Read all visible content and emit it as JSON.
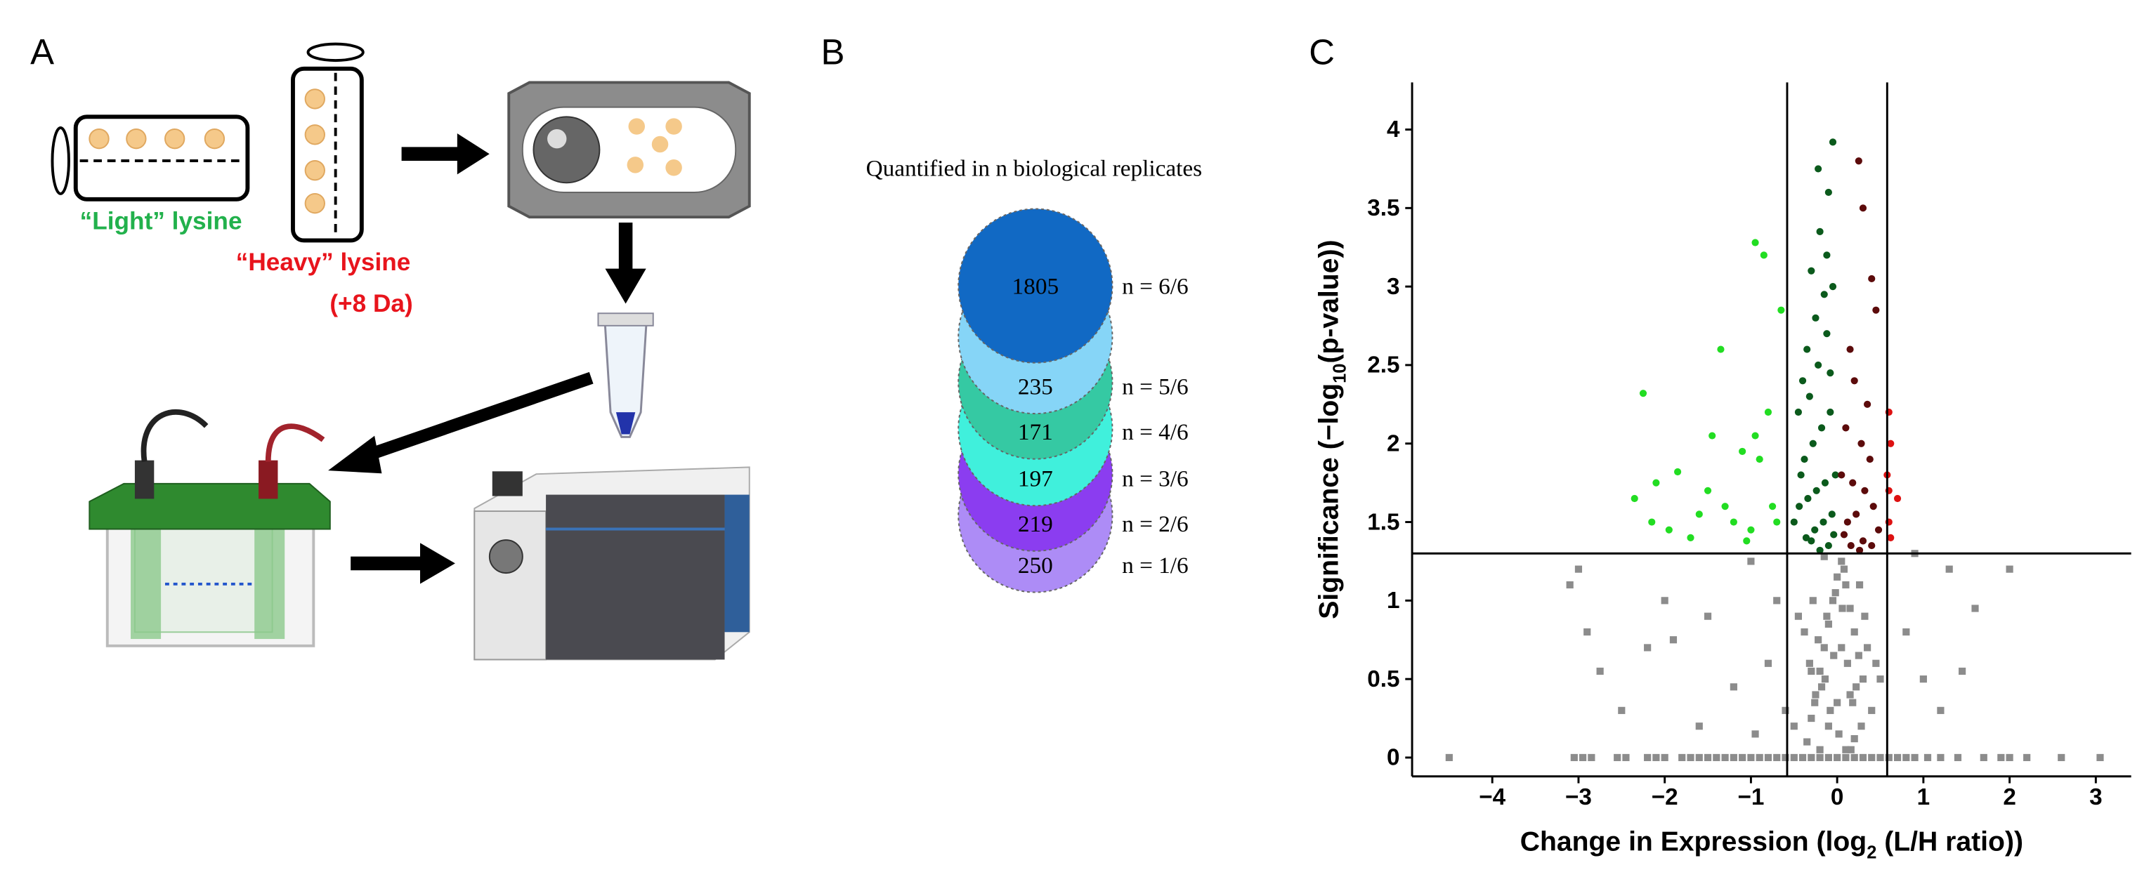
{
  "panel_labels": [
    "A",
    "B",
    "C"
  ],
  "diagram": {
    "light_label": "“Light” lysine",
    "heavy_label": "“Heavy” lysine",
    "heavy_note": "(+8 Da)"
  },
  "chart_data": [
    {
      "type": "circles",
      "title": "Quantified in n biological replicates",
      "categories": [
        "n = 6/6",
        "n = 5/6",
        "n = 4/6",
        "n = 3/6",
        "n = 2/6",
        "n = 1/6"
      ],
      "values": [
        1805,
        235,
        171,
        197,
        219,
        250
      ],
      "colors": [
        "#1169c4",
        "#86d5f7",
        "#35c9a3",
        "#40f0dc",
        "#8b3df0",
        "#ad8cf6"
      ]
    },
    {
      "type": "scatter",
      "xlabel": [
        "Change in Expression (log",
        "2",
        " (L/H ratio))"
      ],
      "ylabel": [
        "Significance (−log",
        "10",
        "(p-value))"
      ],
      "xlim": [
        -4.93,
        3.41
      ],
      "ylim": [
        -0.12,
        4.3
      ],
      "xticks": [
        {
          "value": -4,
          "label": "−4"
        },
        {
          "value": -3,
          "label": "−3"
        },
        {
          "value": -2,
          "label": "−2"
        },
        {
          "value": -1,
          "label": "−1"
        },
        0,
        1,
        2,
        3
      ],
      "yticks": [
        0,
        0.5,
        1,
        1.5,
        2,
        2.5,
        3,
        3.5,
        4
      ],
      "vlines": [
        -0.58,
        0.58
      ],
      "hline": 1.3,
      "series": [
        {
          "color": "#8c8c8c",
          "marker": "square",
          "x": [
            -4.5,
            -3.05,
            -2.95,
            -2.85,
            -2.55,
            -2.45,
            -2.2,
            -2.1,
            -2.0,
            -1.8,
            -1.7,
            -1.6,
            -1.5,
            -1.4,
            -1.3,
            -1.2,
            -1.1,
            -1.0,
            -0.9,
            -0.8,
            -0.7,
            -0.6,
            -0.5,
            -0.4,
            -0.3,
            -0.2,
            -0.1,
            0,
            0.1,
            0.2,
            0.3,
            0.4,
            0.5,
            0.6,
            0.7,
            0.8,
            0.9,
            1.05,
            1.2,
            1.4,
            1.7,
            1.9,
            2.0,
            2.2,
            2.6,
            3.05,
            -3.0,
            -3.1,
            -2.9,
            -2.0,
            -2.2,
            -1.9,
            -2.5,
            -2.75,
            -1.5,
            -1.0,
            -0.8,
            -0.7,
            1.3,
            1.6,
            2.0,
            1.45,
            0.8,
            1.0,
            0.9,
            1.2,
            -0.6,
            -1.2,
            -1.6,
            -0.95,
            -0.35,
            -0.3,
            -0.25,
            -0.2,
            -0.15,
            -0.1,
            -0.05,
            0,
            0.05,
            0.1,
            0.15,
            0.2,
            0.25,
            0.3,
            -0.32,
            -0.22,
            -0.12,
            -0.02,
            0.08,
            0.18,
            0.28,
            -0.28,
            -0.18,
            -0.08,
            0.02,
            0.12,
            0.22,
            0.32,
            -0.38,
            -0.26,
            -0.14,
            -0.04,
            0.06,
            0.16,
            0.26,
            -0.2,
            -0.1,
            0,
            0.1,
            0.2,
            -0.3,
            -0.15,
            0.05,
            0.15,
            0.35,
            0.4,
            -0.45,
            0.45,
            -0.5,
            0.5
          ],
          "y": [
            0,
            0,
            0,
            0,
            0,
            0,
            0,
            0,
            0,
            0,
            0,
            0,
            0,
            0,
            0,
            0,
            0,
            0,
            0,
            0,
            0,
            0,
            0,
            0,
            0,
            0,
            0,
            0,
            0,
            0,
            0,
            0,
            0,
            0,
            0,
            0,
            0,
            0,
            0,
            0,
            0,
            0,
            0,
            0,
            0,
            0,
            1.2,
            1.1,
            0.8,
            1.0,
            0.7,
            0.75,
            0.3,
            0.55,
            0.9,
            1.25,
            0.6,
            1.0,
            1.2,
            0.95,
            1.2,
            0.55,
            0.8,
            0.5,
            1.3,
            0.3,
            0.3,
            0.45,
            0.2,
            0.15,
            0.1,
            0.25,
            0.4,
            0.55,
            0.7,
            0.85,
            1.0,
            1.15,
            1.25,
            1.1,
            0.95,
            0.8,
            0.65,
            0.5,
            0.6,
            0.75,
            0.9,
            1.05,
            1.2,
            0.35,
            0.2,
            1.0,
            0.45,
            0.3,
            0.15,
            0.6,
            0.45,
            0.9,
            0.8,
            0.35,
            0.5,
            0.65,
            0.95,
            0.05,
            1.1,
            0.05,
            0.2,
            0.35,
            0.05,
            0.12,
            0.55,
            1.28,
            0.7,
            0.4,
            0.7,
            0.3,
            0.9,
            0.6,
            0.2,
            0.5
          ]
        },
        {
          "color": "#22dd22",
          "marker": "circle",
          "x": [
            -2.25,
            -0.95,
            -0.85,
            -1.45,
            -1.1,
            -2.1,
            -2.35,
            -1.85,
            -1.5,
            -1.3,
            -0.9,
            -0.75,
            -0.8,
            -0.65,
            -1.35,
            -1.2,
            -1.0,
            -1.95,
            -2.15,
            -1.7,
            -0.7,
            -1.6,
            -0.95,
            -1.05
          ],
          "y": [
            2.32,
            3.28,
            3.2,
            2.05,
            1.95,
            1.75,
            1.65,
            1.82,
            1.7,
            1.6,
            1.9,
            1.6,
            2.2,
            2.85,
            2.6,
            1.5,
            1.45,
            1.45,
            1.5,
            1.4,
            1.5,
            1.55,
            2.05,
            1.38
          ]
        },
        {
          "color": "#0b5a1c",
          "marker": "circle",
          "x": [
            -0.05,
            -0.1,
            -0.2,
            -0.3,
            -0.15,
            -0.25,
            -0.35,
            -0.4,
            -0.45,
            -0.05,
            -0.12,
            -0.22,
            -0.32,
            -0.08,
            -0.18,
            -0.28,
            -0.38,
            -0.02,
            -0.14,
            -0.24,
            -0.34,
            -0.44,
            -0.06,
            -0.16,
            -0.26,
            -0.36,
            -0.1,
            -0.2,
            -0.3,
            -0.04,
            -0.5,
            -0.42,
            -0.12,
            -0.22,
            -0.08
          ],
          "y": [
            3.92,
            3.6,
            3.35,
            3.1,
            2.95,
            2.8,
            2.6,
            2.4,
            2.2,
            3.0,
            2.7,
            2.5,
            2.3,
            2.2,
            2.1,
            2.0,
            1.9,
            1.8,
            1.75,
            1.7,
            1.65,
            1.6,
            1.55,
            1.5,
            1.45,
            1.4,
            1.35,
            1.32,
            1.38,
            1.42,
            1.5,
            1.8,
            3.2,
            3.75,
            2.45
          ]
        },
        {
          "color": "#5c0b0b",
          "marker": "circle",
          "x": [
            0.25,
            0.3,
            0.4,
            0.45,
            0.15,
            0.2,
            0.35,
            0.1,
            0.28,
            0.38,
            0.05,
            0.18,
            0.32,
            0.42,
            0.22,
            0.12,
            0.08,
            0.3,
            0.4,
            0.48,
            0.26,
            0.16
          ],
          "y": [
            3.8,
            3.5,
            3.05,
            2.85,
            2.6,
            2.4,
            2.25,
            2.1,
            2.0,
            1.9,
            1.8,
            1.75,
            1.7,
            1.6,
            1.55,
            1.5,
            1.42,
            1.38,
            1.35,
            1.45,
            1.32,
            1.35
          ]
        },
        {
          "color": "#dd1111",
          "marker": "circle",
          "x": [
            0.6,
            0.62,
            0.7,
            0.58,
            0.6,
            0.62,
            0.6
          ],
          "y": [
            2.2,
            2.0,
            1.65,
            1.8,
            1.5,
            1.4,
            1.7
          ]
        }
      ]
    }
  ]
}
